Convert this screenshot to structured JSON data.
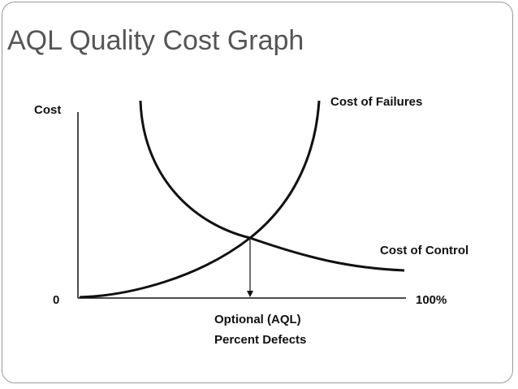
{
  "slide": {
    "title": "AQL Quality Cost Graph"
  },
  "diagram": {
    "y_axis_label": "Cost",
    "x_axis_start_label": "0",
    "x_axis_end_label": "100%",
    "curve_failures_label": "Cost of Failures",
    "curve_control_label": "Cost of Control",
    "marker_label_line1": "Optional (AQL)",
    "marker_label_line2": "Percent Defects"
  },
  "colors": {
    "frame": "#9a9a9a",
    "title": "#555555",
    "ink": "#111111"
  }
}
